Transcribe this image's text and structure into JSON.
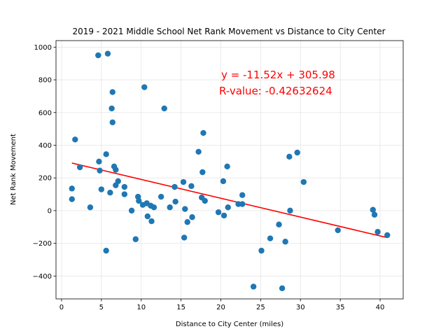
{
  "chart_data": {
    "type": "scatter",
    "title": "2019 - 2021 Middle School Net Rank Movement vs Distance to City Center",
    "xlabel": "Distance to City Center (miles)",
    "ylabel": "Net Rank Movement",
    "xlim": [
      -0.7,
      42.9
    ],
    "ylim": [
      -540,
      1040
    ],
    "xticks": [
      0,
      5,
      10,
      15,
      20,
      25,
      30,
      35,
      40
    ],
    "yticks": [
      -400,
      -200,
      0,
      200,
      400,
      600,
      800,
      1000
    ],
    "grid": true,
    "point_color": "#1f77b4",
    "line_color": "#ff0000",
    "annotation_color": "#ff0000",
    "regression": {
      "slope": -11.52,
      "intercept": 305.98,
      "x_range": [
        1.3,
        40.9
      ]
    },
    "annotations": [
      "y = -11.52x + 305.98",
      "R-value: -0.42632624"
    ],
    "points": [
      {
        "x": 1.3,
        "y": 135
      },
      {
        "x": 1.3,
        "y": 70
      },
      {
        "x": 1.7,
        "y": 435
      },
      {
        "x": 2.3,
        "y": 265
      },
      {
        "x": 3.6,
        "y": 20
      },
      {
        "x": 4.6,
        "y": 950
      },
      {
        "x": 4.7,
        "y": 300
      },
      {
        "x": 4.8,
        "y": 245
      },
      {
        "x": 5.0,
        "y": 130
      },
      {
        "x": 5.6,
        "y": 345
      },
      {
        "x": 5.6,
        "y": -245
      },
      {
        "x": 5.8,
        "y": 960
      },
      {
        "x": 6.1,
        "y": 110
      },
      {
        "x": 6.3,
        "y": 625
      },
      {
        "x": 6.4,
        "y": 725
      },
      {
        "x": 6.4,
        "y": 540
      },
      {
        "x": 6.6,
        "y": 270
      },
      {
        "x": 6.8,
        "y": 250
      },
      {
        "x": 6.8,
        "y": 155
      },
      {
        "x": 7.1,
        "y": 180
      },
      {
        "x": 7.9,
        "y": 145
      },
      {
        "x": 7.9,
        "y": 100
      },
      {
        "x": 8.8,
        "y": 0
      },
      {
        "x": 9.3,
        "y": -175
      },
      {
        "x": 9.6,
        "y": 85
      },
      {
        "x": 9.7,
        "y": 60
      },
      {
        "x": 10.2,
        "y": 35
      },
      {
        "x": 10.4,
        "y": 755
      },
      {
        "x": 10.7,
        "y": 45
      },
      {
        "x": 10.8,
        "y": -35
      },
      {
        "x": 11.2,
        "y": 30
      },
      {
        "x": 11.3,
        "y": -65
      },
      {
        "x": 11.6,
        "y": 20
      },
      {
        "x": 12.5,
        "y": 85
      },
      {
        "x": 12.9,
        "y": 625
      },
      {
        "x": 13.6,
        "y": 20
      },
      {
        "x": 14.2,
        "y": 145
      },
      {
        "x": 14.3,
        "y": 55
      },
      {
        "x": 15.3,
        "y": 175
      },
      {
        "x": 15.4,
        "y": -165
      },
      {
        "x": 15.5,
        "y": 10
      },
      {
        "x": 15.8,
        "y": -70
      },
      {
        "x": 16.3,
        "y": 150
      },
      {
        "x": 16.4,
        "y": -40
      },
      {
        "x": 17.2,
        "y": 360
      },
      {
        "x": 17.6,
        "y": 80
      },
      {
        "x": 17.7,
        "y": 235
      },
      {
        "x": 17.8,
        "y": 475
      },
      {
        "x": 18.0,
        "y": 60
      },
      {
        "x": 19.7,
        "y": -10
      },
      {
        "x": 20.3,
        "y": 180
      },
      {
        "x": 20.4,
        "y": -30
      },
      {
        "x": 20.8,
        "y": 270
      },
      {
        "x": 20.9,
        "y": 20
      },
      {
        "x": 22.2,
        "y": 40
      },
      {
        "x": 22.7,
        "y": 40
      },
      {
        "x": 22.7,
        "y": 95
      },
      {
        "x": 24.1,
        "y": -465
      },
      {
        "x": 25.1,
        "y": -245
      },
      {
        "x": 26.2,
        "y": -170
      },
      {
        "x": 27.3,
        "y": -85
      },
      {
        "x": 27.7,
        "y": -475
      },
      {
        "x": 28.1,
        "y": -190
      },
      {
        "x": 28.6,
        "y": 330
      },
      {
        "x": 28.7,
        "y": 0
      },
      {
        "x": 29.6,
        "y": 355
      },
      {
        "x": 30.4,
        "y": 175
      },
      {
        "x": 34.7,
        "y": -120
      },
      {
        "x": 39.1,
        "y": 5
      },
      {
        "x": 39.3,
        "y": -25
      },
      {
        "x": 39.7,
        "y": -130
      },
      {
        "x": 40.9,
        "y": -150
      }
    ]
  }
}
